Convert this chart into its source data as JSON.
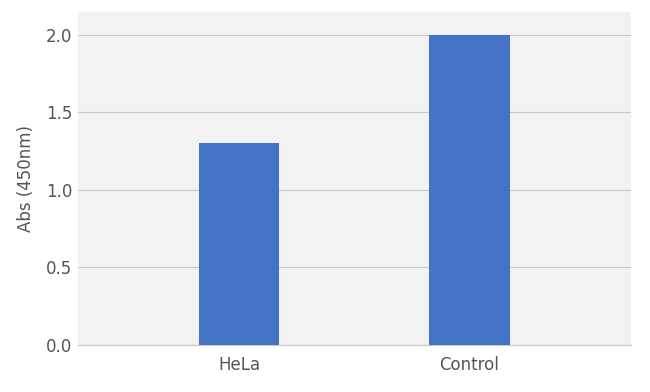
{
  "categories": [
    "HeLa",
    "Control"
  ],
  "values": [
    1.3,
    2.0
  ],
  "bar_color": "#4472C4",
  "bar_width": 0.35,
  "ylabel": "Abs (450nm)",
  "ylim": [
    0.0,
    2.15
  ],
  "yticks": [
    0.0,
    0.5,
    1.0,
    1.5,
    2.0
  ],
  "grid_color": "#c8c8c8",
  "background_color": "#ffffff",
  "plot_bg_color": "#f2f2f2",
  "tick_fontsize": 12,
  "label_fontsize": 12,
  "xlim": [
    -0.7,
    1.7
  ]
}
